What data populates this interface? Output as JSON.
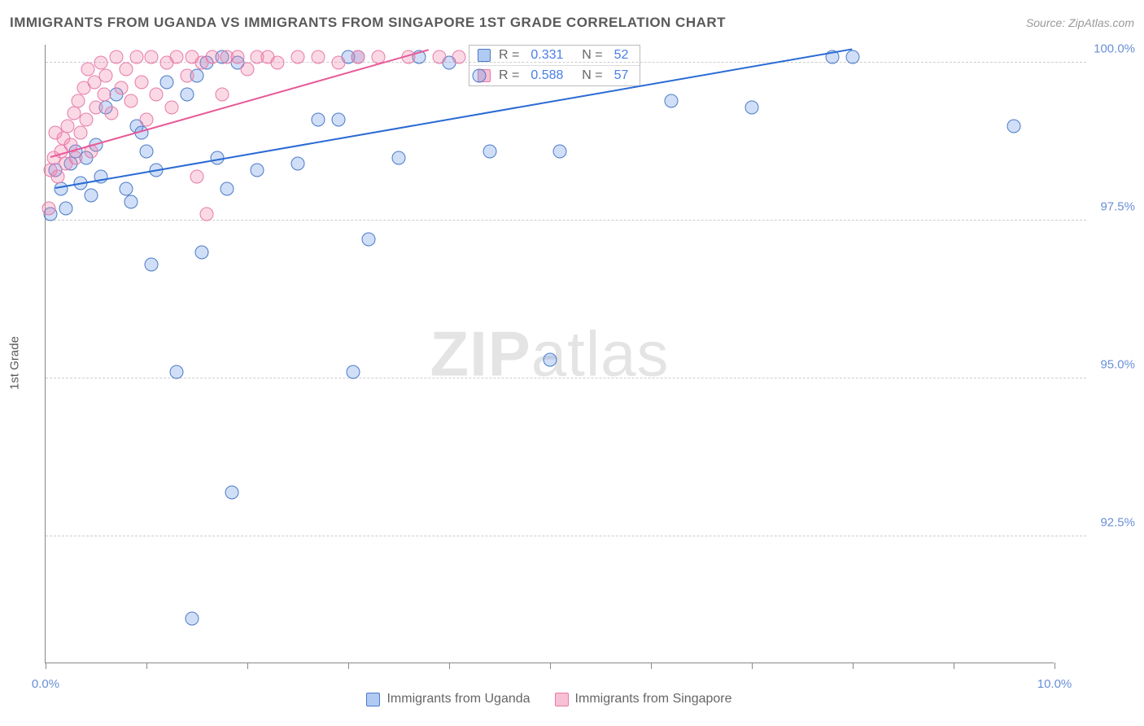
{
  "title": "IMMIGRANTS FROM UGANDA VS IMMIGRANTS FROM SINGAPORE 1ST GRADE CORRELATION CHART",
  "source": "Source: ZipAtlas.com",
  "ylabel": "1st Grade",
  "watermark_bold": "ZIP",
  "watermark_light": "atlas",
  "chart": {
    "type": "scatter",
    "xlim": [
      0,
      10
    ],
    "ylim": [
      90.5,
      100.3
    ],
    "xtick_positions": [
      0,
      1,
      2,
      3,
      4,
      5,
      6,
      7,
      8,
      9,
      10
    ],
    "xtick_labels": {
      "0": "0.0%",
      "10": "10.0%"
    },
    "ytick_positions": [
      92.5,
      95.0,
      97.5,
      100.0
    ],
    "ytick_labels": [
      "92.5%",
      "95.0%",
      "97.5%",
      "100.0%"
    ],
    "grid_color": "#cccccc",
    "axis_color": "#888888",
    "background_color": "#ffffff",
    "marker_size": 17,
    "series": [
      {
        "name": "Immigrants from Uganda",
        "color_fill": "rgba(100,150,230,0.30)",
        "color_stroke": "#4a7ac8",
        "trend_color": "#2a6ad4",
        "R": 0.331,
        "N": 52,
        "trend": {
          "x1": 0.1,
          "y1": 98.0,
          "x2": 8.0,
          "y2": 100.2
        },
        "points": [
          [
            0.05,
            97.6
          ],
          [
            0.1,
            98.3
          ],
          [
            0.15,
            98.0
          ],
          [
            0.2,
            97.7
          ],
          [
            0.25,
            98.4
          ],
          [
            0.3,
            98.6
          ],
          [
            0.35,
            98.1
          ],
          [
            0.4,
            98.5
          ],
          [
            0.45,
            97.9
          ],
          [
            0.5,
            98.7
          ],
          [
            0.55,
            98.2
          ],
          [
            0.6,
            99.3
          ],
          [
            0.7,
            99.5
          ],
          [
            0.8,
            98.0
          ],
          [
            0.85,
            97.8
          ],
          [
            0.9,
            99.0
          ],
          [
            0.95,
            98.9
          ],
          [
            1.0,
            98.6
          ],
          [
            1.05,
            96.8
          ],
          [
            1.1,
            98.3
          ],
          [
            1.2,
            99.7
          ],
          [
            1.3,
            95.1
          ],
          [
            1.4,
            99.5
          ],
          [
            1.45,
            91.2
          ],
          [
            1.5,
            99.8
          ],
          [
            1.55,
            97.0
          ],
          [
            1.6,
            100.0
          ],
          [
            1.7,
            98.5
          ],
          [
            1.75,
            100.1
          ],
          [
            1.8,
            98.0
          ],
          [
            1.85,
            93.2
          ],
          [
            1.9,
            100.0
          ],
          [
            2.1,
            98.3
          ],
          [
            2.5,
            98.4
          ],
          [
            2.7,
            99.1
          ],
          [
            2.9,
            99.1
          ],
          [
            3.0,
            100.1
          ],
          [
            3.05,
            95.1
          ],
          [
            3.1,
            100.1
          ],
          [
            3.2,
            97.2
          ],
          [
            3.5,
            98.5
          ],
          [
            3.7,
            100.1
          ],
          [
            4.0,
            100.0
          ],
          [
            4.3,
            99.8
          ],
          [
            4.4,
            98.6
          ],
          [
            5.0,
            95.3
          ],
          [
            5.1,
            98.6
          ],
          [
            6.2,
            99.4
          ],
          [
            7.0,
            99.3
          ],
          [
            7.8,
            100.1
          ],
          [
            8.0,
            100.1
          ],
          [
            9.6,
            99.0
          ]
        ]
      },
      {
        "name": "Immigrants from Singapore",
        "color_fill": "rgba(240,130,170,0.30)",
        "color_stroke": "#e87aa8",
        "trend_color": "#e85a98",
        "R": 0.588,
        "N": 57,
        "trend": {
          "x1": 0.05,
          "y1": 98.5,
          "x2": 3.8,
          "y2": 100.2
        },
        "points": [
          [
            0.03,
            97.7
          ],
          [
            0.05,
            98.3
          ],
          [
            0.08,
            98.5
          ],
          [
            0.1,
            98.9
          ],
          [
            0.12,
            98.2
          ],
          [
            0.15,
            98.6
          ],
          [
            0.18,
            98.8
          ],
          [
            0.2,
            98.4
          ],
          [
            0.22,
            99.0
          ],
          [
            0.25,
            98.7
          ],
          [
            0.28,
            99.2
          ],
          [
            0.3,
            98.5
          ],
          [
            0.32,
            99.4
          ],
          [
            0.35,
            98.9
          ],
          [
            0.38,
            99.6
          ],
          [
            0.4,
            99.1
          ],
          [
            0.42,
            99.9
          ],
          [
            0.45,
            98.6
          ],
          [
            0.48,
            99.7
          ],
          [
            0.5,
            99.3
          ],
          [
            0.55,
            100.0
          ],
          [
            0.58,
            99.5
          ],
          [
            0.6,
            99.8
          ],
          [
            0.65,
            99.2
          ],
          [
            0.7,
            100.1
          ],
          [
            0.75,
            99.6
          ],
          [
            0.8,
            99.9
          ],
          [
            0.85,
            99.4
          ],
          [
            0.9,
            100.1
          ],
          [
            0.95,
            99.7
          ],
          [
            1.0,
            99.1
          ],
          [
            1.05,
            100.1
          ],
          [
            1.1,
            99.5
          ],
          [
            1.2,
            100.0
          ],
          [
            1.25,
            99.3
          ],
          [
            1.3,
            100.1
          ],
          [
            1.4,
            99.8
          ],
          [
            1.45,
            100.1
          ],
          [
            1.5,
            98.2
          ],
          [
            1.55,
            100.0
          ],
          [
            1.6,
            97.6
          ],
          [
            1.65,
            100.1
          ],
          [
            1.75,
            99.5
          ],
          [
            1.8,
            100.1
          ],
          [
            1.9,
            100.1
          ],
          [
            2.0,
            99.9
          ],
          [
            2.1,
            100.1
          ],
          [
            2.2,
            100.1
          ],
          [
            2.3,
            100.0
          ],
          [
            2.5,
            100.1
          ],
          [
            2.7,
            100.1
          ],
          [
            2.9,
            100.0
          ],
          [
            3.1,
            100.1
          ],
          [
            3.3,
            100.1
          ],
          [
            3.6,
            100.1
          ],
          [
            3.9,
            100.1
          ],
          [
            4.1,
            100.1
          ]
        ]
      }
    ]
  },
  "stats_box": {
    "rows": [
      {
        "swatch_fill": "rgba(100,150,230,0.5)",
        "swatch_stroke": "#4a7ac8",
        "r_label": "R =",
        "r_val": "0.331",
        "n_label": "N =",
        "n_val": "52"
      },
      {
        "swatch_fill": "rgba(240,130,170,0.5)",
        "swatch_stroke": "#e87aa8",
        "r_label": "R =",
        "r_val": "0.588",
        "n_label": "N =",
        "n_val": "57"
      }
    ]
  },
  "bottom_legend": [
    {
      "label": "Immigrants from Uganda",
      "fill": "rgba(100,150,230,0.5)",
      "stroke": "#4a7ac8"
    },
    {
      "label": "Immigrants from Singapore",
      "fill": "rgba(240,130,170,0.5)",
      "stroke": "#e87aa8"
    }
  ]
}
